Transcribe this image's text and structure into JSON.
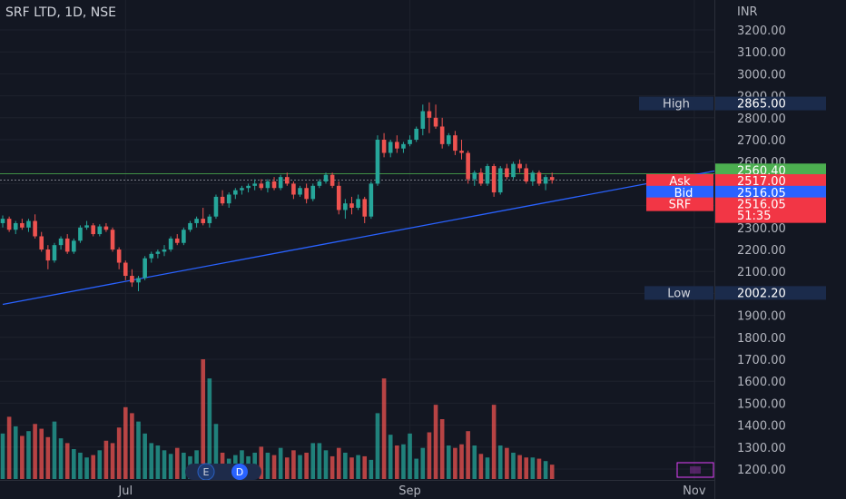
{
  "chart_data": {
    "type": "candlestick",
    "title": "SRF LTD, 1D, NSE",
    "currency": "INR",
    "ylim": [
      1170,
      3260
    ],
    "y_ticks": [
      3200,
      3100,
      3000,
      2900,
      2800,
      2700,
      2600,
      2500,
      2400,
      2300,
      2200,
      2100,
      2000,
      1900,
      1800,
      1700,
      1600,
      1500,
      1400,
      1300,
      1200
    ],
    "y_tick_labels": [
      "3200.00",
      "3100.00",
      "3000.00",
      "2900.00",
      "2800.00",
      "2700.00",
      "2600.00",
      "2500.00",
      "2400.00",
      "2300.00",
      "2200.00",
      "2100.00",
      "2000.00",
      "1900.00",
      "1800.00",
      "1700.00",
      "1600.00",
      "1500.00",
      "1400.00",
      "1300.00",
      "1200.00"
    ],
    "x_ticks": [
      {
        "label": "Jul",
        "bar": 19
      },
      {
        "label": "Sep",
        "bar": 63
      },
      {
        "label": "Nov",
        "bar": 107
      }
    ],
    "price_tags": {
      "high": {
        "label": "High",
        "value": "2865.00",
        "price": 2865
      },
      "green": {
        "value": "2560.40",
        "price": 2560.4
      },
      "ask": {
        "label": "Ask",
        "value": "2517.00",
        "price": 2517
      },
      "bid": {
        "label": "Bid",
        "value": "2516.05",
        "price": 2516.05
      },
      "last": {
        "label": "SRF",
        "value": "2516.05",
        "price": 2516.05,
        "countdown": "51:35"
      },
      "low": {
        "label": "Low",
        "value": "2002.20",
        "price": 2002.2
      }
    },
    "horizontal_line_price": 2545,
    "trendline": [
      {
        "bar": 0,
        "price": 1950
      },
      {
        "bar": 116,
        "price": 2590
      }
    ],
    "volume_max": 100,
    "candles": [
      [
        2320,
        2355,
        2300,
        2340,
        38
      ],
      [
        2340,
        2350,
        2280,
        2290,
        52
      ],
      [
        2290,
        2330,
        2270,
        2320,
        44
      ],
      [
        2320,
        2340,
        2290,
        2300,
        36
      ],
      [
        2300,
        2340,
        2280,
        2330,
        40
      ],
      [
        2330,
        2360,
        2250,
        2260,
        46
      ],
      [
        2260,
        2280,
        2190,
        2200,
        42
      ],
      [
        2200,
        2220,
        2110,
        2150,
        35
      ],
      [
        2150,
        2230,
        2140,
        2220,
        48
      ],
      [
        2220,
        2260,
        2200,
        2250,
        34
      ],
      [
        2250,
        2270,
        2180,
        2190,
        30
      ],
      [
        2190,
        2250,
        2180,
        2240,
        25
      ],
      [
        2240,
        2310,
        2230,
        2300,
        22
      ],
      [
        2300,
        2330,
        2290,
        2310,
        18
      ],
      [
        2310,
        2320,
        2260,
        2270,
        20
      ],
      [
        2270,
        2315,
        2260,
        2305,
        24
      ],
      [
        2305,
        2320,
        2280,
        2290,
        32
      ],
      [
        2290,
        2300,
        2190,
        2200,
        30
      ],
      [
        2200,
        2210,
        2110,
        2140,
        43
      ],
      [
        2140,
        2150,
        2060,
        2080,
        60
      ],
      [
        2080,
        2110,
        2030,
        2050,
        55
      ],
      [
        2050,
        2080,
        2010,
        2070,
        48
      ],
      [
        2070,
        2170,
        2060,
        2160,
        38
      ],
      [
        2160,
        2190,
        2140,
        2180,
        30
      ],
      [
        2180,
        2200,
        2160,
        2190,
        28
      ],
      [
        2190,
        2220,
        2170,
        2200,
        24
      ],
      [
        2200,
        2260,
        2190,
        2250,
        21
      ],
      [
        2250,
        2270,
        2220,
        2230,
        26
      ],
      [
        2230,
        2300,
        2220,
        2290,
        22
      ],
      [
        2290,
        2330,
        2280,
        2320,
        19
      ],
      [
        2320,
        2350,
        2300,
        2340,
        24
      ],
      [
        2340,
        2390,
        2310,
        2320,
        100
      ],
      [
        2320,
        2360,
        2300,
        2350,
        84
      ],
      [
        2350,
        2450,
        2340,
        2440,
        46
      ],
      [
        2440,
        2470,
        2400,
        2410,
        22
      ],
      [
        2410,
        2460,
        2390,
        2450,
        17
      ],
      [
        2450,
        2480,
        2430,
        2470,
        20
      ],
      [
        2470,
        2490,
        2450,
        2480,
        24
      ],
      [
        2480,
        2500,
        2460,
        2490,
        19
      ],
      [
        2490,
        2520,
        2470,
        2500,
        22
      ],
      [
        2500,
        2520,
        2470,
        2480,
        27
      ],
      [
        2480,
        2520,
        2460,
        2510,
        22
      ],
      [
        2510,
        2530,
        2470,
        2480,
        20
      ],
      [
        2480,
        2540,
        2470,
        2530,
        26
      ],
      [
        2530,
        2550,
        2490,
        2500,
        18
      ],
      [
        2500,
        2510,
        2430,
        2450,
        24
      ],
      [
        2450,
        2490,
        2440,
        2480,
        20
      ],
      [
        2480,
        2500,
        2410,
        2430,
        22
      ],
      [
        2430,
        2500,
        2420,
        2490,
        30
      ],
      [
        2490,
        2520,
        2480,
        2510,
        30
      ],
      [
        2510,
        2550,
        2500,
        2540,
        24
      ],
      [
        2540,
        2550,
        2480,
        2490,
        19
      ],
      [
        2490,
        2510,
        2360,
        2380,
        26
      ],
      [
        2380,
        2430,
        2340,
        2410,
        22
      ],
      [
        2410,
        2440,
        2360,
        2390,
        18
      ],
      [
        2390,
        2450,
        2380,
        2430,
        20
      ],
      [
        2430,
        2440,
        2320,
        2350,
        19
      ],
      [
        2350,
        2510,
        2340,
        2500,
        16
      ],
      [
        2500,
        2720,
        2490,
        2700,
        55
      ],
      [
        2700,
        2730,
        2620,
        2640,
        84
      ],
      [
        2640,
        2700,
        2620,
        2690,
        37
      ],
      [
        2690,
        2720,
        2640,
        2660,
        28
      ],
      [
        2660,
        2690,
        2640,
        2680,
        29
      ],
      [
        2680,
        2720,
        2670,
        2700,
        38
      ],
      [
        2700,
        2760,
        2690,
        2750,
        17
      ],
      [
        2750,
        2860,
        2720,
        2830,
        26
      ],
      [
        2830,
        2870,
        2730,
        2800,
        39
      ],
      [
        2800,
        2860,
        2750,
        2760,
        62
      ],
      [
        2760,
        2800,
        2660,
        2680,
        50
      ],
      [
        2680,
        2730,
        2670,
        2720,
        28
      ],
      [
        2720,
        2740,
        2630,
        2650,
        26
      ],
      [
        2650,
        2700,
        2610,
        2640,
        29
      ],
      [
        2640,
        2650,
        2500,
        2520,
        40
      ],
      [
        2520,
        2560,
        2490,
        2550,
        28
      ],
      [
        2550,
        2570,
        2490,
        2500,
        21
      ],
      [
        2500,
        2590,
        2490,
        2580,
        18
      ],
      [
        2580,
        2590,
        2440,
        2460,
        62
      ],
      [
        2460,
        2580,
        2450,
        2570,
        28
      ],
      [
        2570,
        2590,
        2520,
        2530,
        26
      ],
      [
        2530,
        2600,
        2520,
        2590,
        22
      ],
      [
        2590,
        2610,
        2550,
        2570,
        20
      ],
      [
        2570,
        2590,
        2500,
        2510,
        18
      ],
      [
        2510,
        2560,
        2490,
        2550,
        18
      ],
      [
        2550,
        2560,
        2490,
        2500,
        17
      ],
      [
        2500,
        2540,
        2470,
        2530,
        15
      ],
      [
        2530,
        2550,
        2500,
        2516,
        12
      ]
    ]
  }
}
